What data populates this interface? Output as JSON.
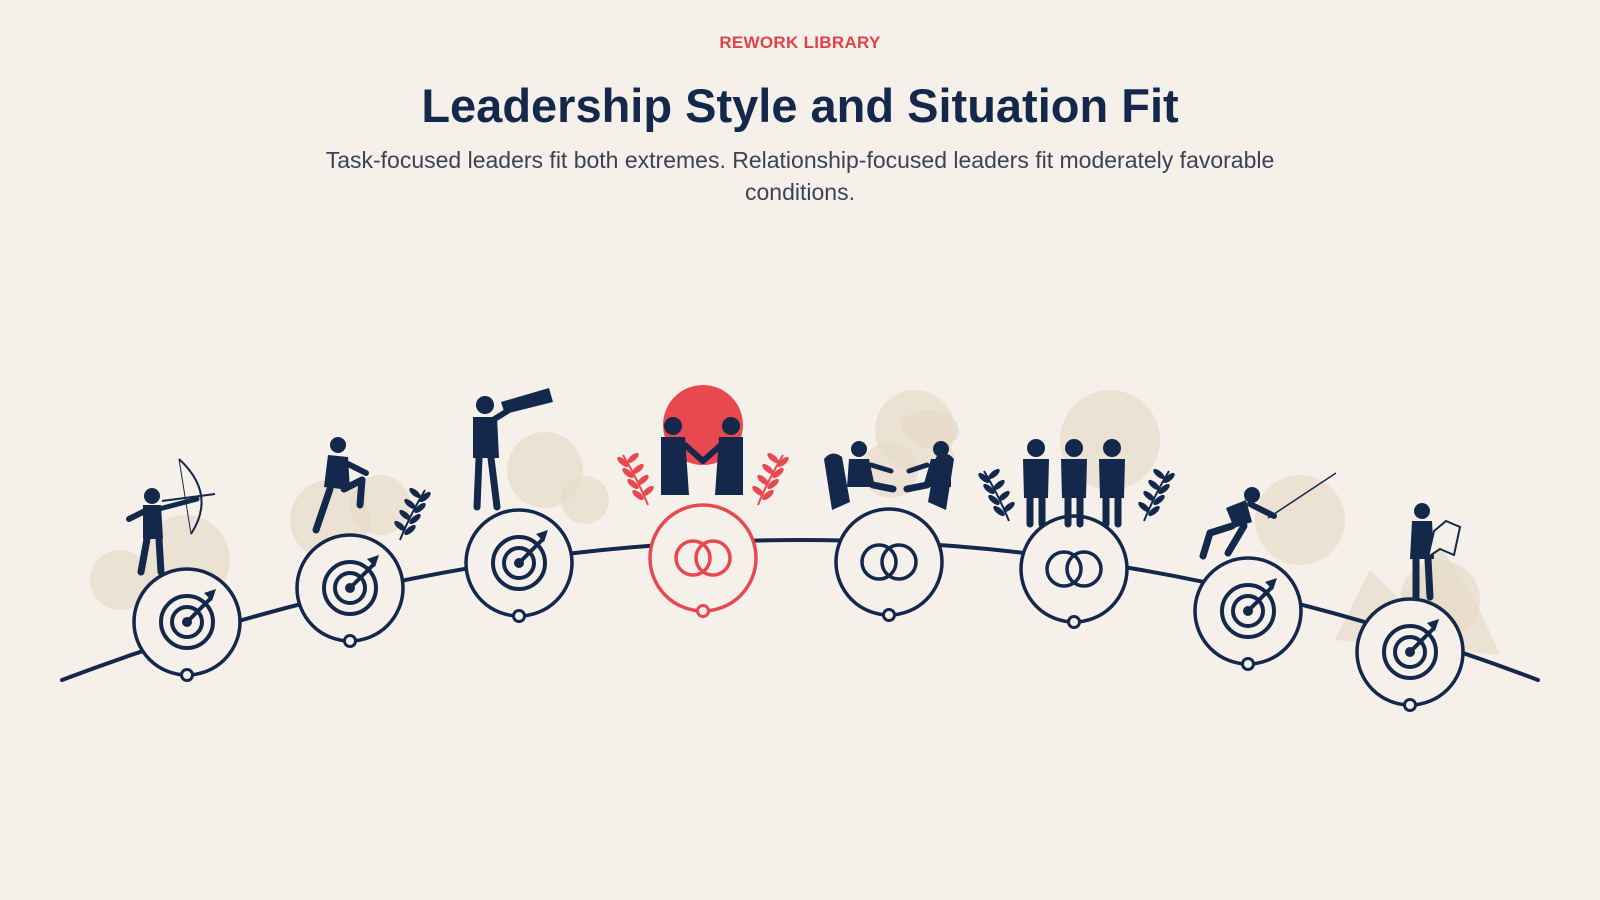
{
  "header": {
    "kicker": "REWORK LIBRARY",
    "title": "Leadership Style and Situation Fit",
    "subtitle": "Task-focused leaders fit both extremes. Relationship-focused leaders fit moderately favorable conditions."
  },
  "colors": {
    "navy": "#13284a",
    "accent": "#e8484f",
    "background": "#f5f1ea",
    "beige": "#e6d8c4"
  },
  "stages": [
    {
      "figure": "archer",
      "icon": "target-icon",
      "highlight": false
    },
    {
      "figure": "climber",
      "icon": "target-icon",
      "highlight": false
    },
    {
      "figure": "telescope-viewer",
      "icon": "target-icon",
      "highlight": false
    },
    {
      "figure": "handshake",
      "icon": "rings-icon",
      "highlight": true
    },
    {
      "figure": "seated-conversation",
      "icon": "rings-icon",
      "highlight": false
    },
    {
      "figure": "team-group",
      "icon": "rings-icon",
      "highlight": false
    },
    {
      "figure": "pusher",
      "icon": "target-icon",
      "highlight": false
    },
    {
      "figure": "map-reader",
      "icon": "target-icon",
      "highlight": false
    }
  ]
}
